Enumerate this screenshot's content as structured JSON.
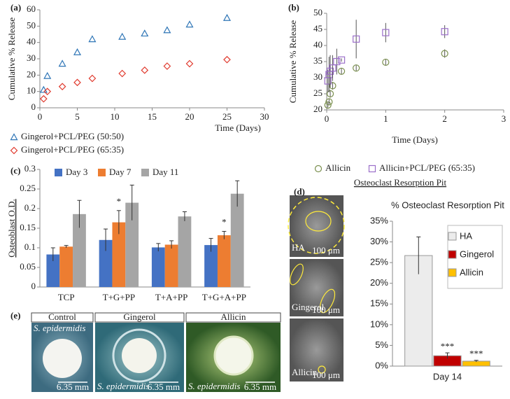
{
  "chart_data": [
    {
      "type": "scatter",
      "label": "(a)",
      "xlabel": "Time (Days)",
      "ylabel": "Cumulative % Release",
      "xlim": [
        0,
        30
      ],
      "xticks": [
        0,
        5,
        10,
        15,
        20,
        25,
        30
      ],
      "ylim": [
        0,
        60
      ],
      "yticks": [
        0,
        10,
        20,
        30,
        40,
        50,
        60
      ],
      "legend": "below",
      "series": [
        {
          "name": "Gingerol+PCL/PEG (50:50)",
          "color": "#2e75b6",
          "marker": "triangle",
          "x": [
            0.5,
            1,
            3,
            5,
            7,
            11,
            14,
            17,
            20,
            25
          ],
          "values": [
            11,
            19.5,
            27,
            34,
            42,
            43.5,
            45.5,
            47.5,
            51,
            55
          ]
        },
        {
          "name": "Gingerol+PCL/PEG (65:35)",
          "color": "#e03a2e",
          "marker": "diamond",
          "x": [
            0.5,
            1,
            3,
            5,
            7,
            11,
            14,
            17,
            20,
            25
          ],
          "values": [
            5.5,
            10,
            13,
            15.5,
            18,
            21,
            23,
            25.5,
            27,
            29.5
          ]
        }
      ]
    },
    {
      "type": "scatter",
      "label": "(b)",
      "xlabel": "Time (Days)",
      "ylabel": "Cumulative % Release",
      "xlim": [
        0,
        3
      ],
      "xticks": [
        0,
        1,
        2,
        3
      ],
      "ylim": [
        20,
        50
      ],
      "yticks": [
        20,
        25,
        30,
        35,
        40,
        45,
        50
      ],
      "legend": "bottom",
      "series": [
        {
          "name": "Allicin",
          "color": "#7a8f4e",
          "marker": "circle",
          "x": [
            0.02,
            0.04,
            0.06,
            0.1,
            0.25,
            0.5,
            1,
            2
          ],
          "values": [
            21.5,
            22.5,
            25,
            27.5,
            32,
            33,
            34.8,
            37.5
          ],
          "errors": [
            0.8,
            1,
            1.2,
            1.2,
            1,
            1,
            1,
            1.3
          ]
        },
        {
          "name": "Allicin+PCL/PEG (65:35)",
          "color": "#9b6fc9",
          "marker": "square",
          "x": [
            0.02,
            0.04,
            0.06,
            0.1,
            0.17,
            0.25,
            0.5,
            1,
            2
          ],
          "values": [
            29,
            31,
            32,
            33,
            35,
            35.5,
            42,
            44,
            44.3
          ],
          "errors": [
            3.5,
            5.5,
            5,
            4,
            4,
            0.5,
            6,
            3,
            2
          ]
        }
      ]
    },
    {
      "type": "bar",
      "label": "(c)",
      "ylabel": "Osteoblast O.D.",
      "ylim": [
        0,
        0.3
      ],
      "yticks": [
        0,
        0.05,
        0.1,
        0.15,
        0.2,
        0.25,
        0.3
      ],
      "legend": "top",
      "categories": [
        "TCP",
        "T+G+PP",
        "T+A+PP",
        "T+G+A+PP"
      ],
      "series": [
        {
          "name": "Day 3",
          "color": "#4472c4",
          "values": [
            0.083,
            0.12,
            0.101,
            0.107
          ],
          "errors": [
            0.017,
            0.028,
            0.01,
            0.017
          ]
        },
        {
          "name": "Day 7",
          "color": "#ed7d31",
          "values": [
            0.103,
            0.165,
            0.108,
            0.132
          ],
          "errors": [
            0.003,
            0.03,
            0.01,
            0.01
          ],
          "labels": [
            null,
            "*",
            null,
            "*"
          ]
        },
        {
          "name": "Day 11",
          "color": "#a5a5a5",
          "values": [
            0.186,
            0.215,
            0.18,
            0.238
          ],
          "errors": [
            0.035,
            0.045,
            0.012,
            0.033
          ]
        }
      ]
    },
    {
      "type": "bar",
      "label": "(d)",
      "header": "Osteoclast Resorption Pit",
      "title": "% Osteoclast Resorption Pit",
      "legend": "right",
      "ylim": [
        0,
        35
      ],
      "yticks": [
        {
          "value": 0,
          "label": "0%"
        },
        {
          "value": 5,
          "label": "5%"
        },
        {
          "value": 10,
          "label": "10%"
        },
        {
          "value": 15,
          "label": "15%"
        },
        {
          "value": 20,
          "label": "20%"
        },
        {
          "value": 25,
          "label": "25%"
        },
        {
          "value": 30,
          "label": "30%"
        },
        {
          "value": 35,
          "label": "35%"
        }
      ],
      "categories": [
        "Day 14"
      ],
      "series": [
        {
          "name": "HA",
          "color": "#ececec",
          "values": [
            26.7
          ],
          "errors": [
            4.5
          ]
        },
        {
          "name": "Gingerol",
          "color": "#c00000",
          "values": [
            2.5
          ],
          "errors": [
            0.7
          ],
          "labels": [
            "***"
          ]
        },
        {
          "name": "Allicin",
          "color": "#ffc000",
          "values": [
            1.2
          ],
          "errors": [
            0.2
          ],
          "labels": [
            "***"
          ]
        }
      ]
    }
  ],
  "resorption_images": [
    {
      "label": "HA",
      "scale": "100 μm"
    },
    {
      "label": "Gingerol",
      "scale": "100 μm"
    },
    {
      "label": "Allicin",
      "scale": "100 μm"
    }
  ],
  "zone_panel": {
    "label": "(e)",
    "images": [
      {
        "header": "Control",
        "organism": "S. epidermidis",
        "scale": "6.35 mm"
      },
      {
        "header": "Gingerol",
        "organism": "S. epidermidis",
        "scale": "6.35 mm"
      },
      {
        "header": "Allicin",
        "organism": "S. epidermidis",
        "scale": "6.35 mm"
      }
    ]
  }
}
